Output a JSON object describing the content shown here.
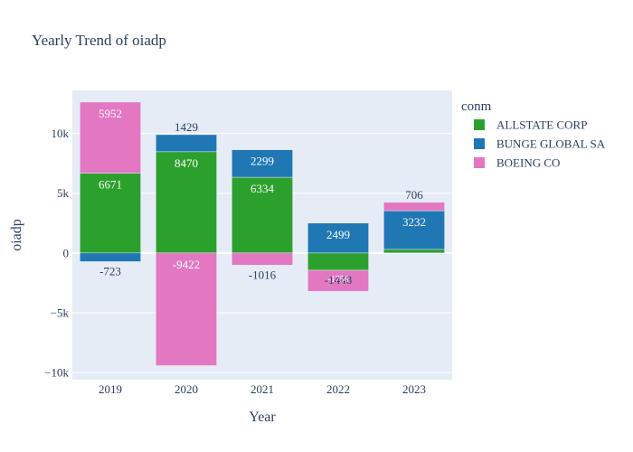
{
  "chart_data": {
    "type": "bar",
    "barmode": "relative",
    "title": "Yearly Trend of oiadp",
    "xlabel": "Year",
    "ylabel": "oiadp",
    "categories": [
      "2019",
      "2020",
      "2021",
      "2022",
      "2023"
    ],
    "ylim": [
      -10600,
      13600
    ],
    "yticks": [
      -10000,
      -5000,
      0,
      5000,
      10000
    ],
    "ytick_labels": [
      "−10k",
      "−5k",
      "0",
      "5k",
      "10k"
    ],
    "legend_title": "conm",
    "legend_position": "right",
    "series": [
      {
        "name": "ALLSTATE CORP",
        "color": "#2ca02c",
        "values": [
          6671,
          8470,
          6334,
          -1448,
          300
        ],
        "labels": [
          "6671",
          "8470",
          "6334",
          "-1448",
          ""
        ]
      },
      {
        "name": "BUNGE GLOBAL SA",
        "color": "#1f77b4",
        "values": [
          -723,
          1429,
          2299,
          2499,
          3232
        ],
        "labels": [
          "-723",
          "1429",
          "2299",
          "2499",
          "3232"
        ]
      },
      {
        "name": "BOEING CO",
        "color": "#e377c2",
        "values": [
          5952,
          -9422,
          -1016,
          -1756,
          706
        ],
        "labels": [
          "5952",
          "-9422",
          "-1016",
          "-1756",
          "706"
        ]
      }
    ]
  }
}
